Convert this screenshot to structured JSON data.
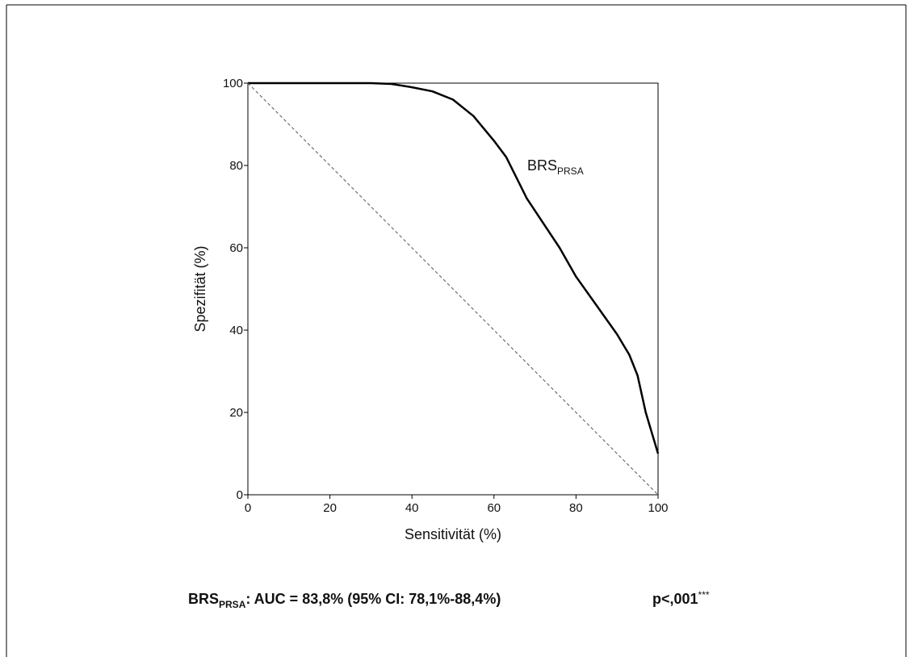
{
  "chart_data": {
    "type": "line",
    "xlabel": "Sensitivität (%)",
    "ylabel": "Spezifität (%)",
    "xlim": [
      0,
      100
    ],
    "ylim": [
      0,
      100
    ],
    "xticks": [
      0,
      20,
      40,
      60,
      80,
      100
    ],
    "yticks": [
      0,
      20,
      40,
      60,
      80,
      100
    ],
    "series": [
      {
        "x": [
          0,
          10,
          20,
          30,
          35,
          40,
          45,
          50,
          55,
          60,
          63,
          65,
          68,
          72,
          76,
          80,
          85,
          90,
          93,
          95,
          97,
          100
        ],
        "values": [
          100,
          100,
          100,
          100,
          99.8,
          99,
          98,
          96,
          92,
          86,
          82,
          78,
          72,
          66,
          60,
          53,
          46,
          39,
          34,
          29,
          20,
          10
        ],
        "color": "#000000",
        "dash": false
      },
      {
        "x": [
          0,
          100
        ],
        "values": [
          100,
          0
        ],
        "color": "#555555",
        "dash": true
      }
    ],
    "annotation": {
      "main": "BRS",
      "sub": "PRSA"
    },
    "caption": {
      "main": "BRS",
      "sub": "PRSA",
      "text": ": AUC = 83,8% (95% CI: 78,1%-88,4%)",
      "p": "p<,001",
      "sup": "***"
    }
  }
}
